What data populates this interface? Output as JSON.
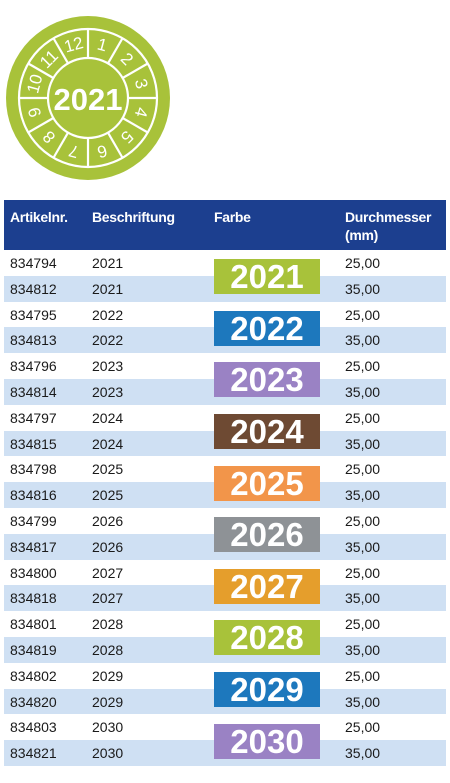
{
  "badge": {
    "year": "2021",
    "color": "#a8c23a",
    "months": [
      "1",
      "2",
      "3",
      "4",
      "5",
      "6",
      "7",
      "8",
      "9",
      "10",
      "11",
      "12"
    ]
  },
  "table": {
    "headers": {
      "artikel": "Artikelnr.",
      "beschriftung": "Beschriftung",
      "farbe": "Farbe",
      "durchmesser_line1": "Durchmesser",
      "durchmesser_line2": "(mm)"
    },
    "header_color": "#1c3f8f",
    "stripe_color": "#cfe0f3",
    "groups": [
      {
        "year": "2021",
        "color": "#a8c23a",
        "rows": [
          {
            "art": "834794",
            "label": "2021",
            "dm": "25,00"
          },
          {
            "art": "834812",
            "label": "2021",
            "dm": "35,00"
          }
        ]
      },
      {
        "year": "2022",
        "color": "#1d78bd",
        "rows": [
          {
            "art": "834795",
            "label": "2022",
            "dm": "25,00"
          },
          {
            "art": "834813",
            "label": "2022",
            "dm": "35,00"
          }
        ]
      },
      {
        "year": "2023",
        "color": "#9a82c4",
        "rows": [
          {
            "art": "834796",
            "label": "2023",
            "dm": "25,00"
          },
          {
            "art": "834814",
            "label": "2023",
            "dm": "35,00"
          }
        ]
      },
      {
        "year": "2024",
        "color": "#6e4a33",
        "rows": [
          {
            "art": "834797",
            "label": "2024",
            "dm": "25,00"
          },
          {
            "art": "834815",
            "label": "2024",
            "dm": "35,00"
          }
        ]
      },
      {
        "year": "2025",
        "color": "#f2954a",
        "rows": [
          {
            "art": "834798",
            "label": "2025",
            "dm": "25,00"
          },
          {
            "art": "834816",
            "label": "2025",
            "dm": "35,00"
          }
        ]
      },
      {
        "year": "2026",
        "color": "#8e9296",
        "rows": [
          {
            "art": "834799",
            "label": "2026",
            "dm": "25,00"
          },
          {
            "art": "834817",
            "label": "2026",
            "dm": "35,00"
          }
        ]
      },
      {
        "year": "2027",
        "color": "#e59e2c",
        "rows": [
          {
            "art": "834800",
            "label": "2027",
            "dm": "25,00"
          },
          {
            "art": "834818",
            "label": "2027",
            "dm": "35,00"
          }
        ]
      },
      {
        "year": "2028",
        "color": "#a8c23a",
        "rows": [
          {
            "art": "834801",
            "label": "2028",
            "dm": "25,00"
          },
          {
            "art": "834819",
            "label": "2028",
            "dm": "35,00"
          }
        ]
      },
      {
        "year": "2029",
        "color": "#1d78bd",
        "rows": [
          {
            "art": "834802",
            "label": "2029",
            "dm": "25,00"
          },
          {
            "art": "834820",
            "label": "2029",
            "dm": "35,00"
          }
        ]
      },
      {
        "year": "2030",
        "color": "#9a82c4",
        "rows": [
          {
            "art": "834803",
            "label": "2030",
            "dm": "25,00"
          },
          {
            "art": "834821",
            "label": "2030",
            "dm": "35,00"
          }
        ]
      }
    ]
  }
}
